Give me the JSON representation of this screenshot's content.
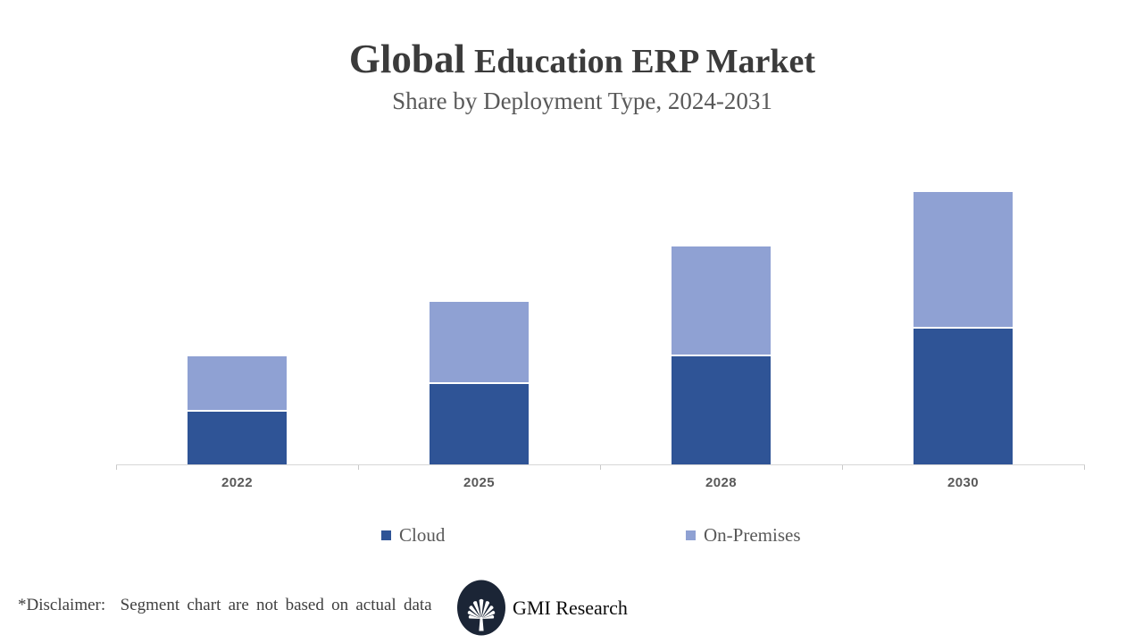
{
  "header": {
    "title_emphasis": "Global",
    "title_rest": "Education ERP Market",
    "subtitle": "Share by Deployment Type, 2024-2031"
  },
  "chart_data": {
    "type": "bar",
    "stacked": true,
    "title": "Global Education ERP Market",
    "subtitle": "Share by Deployment Type, 2024-2031",
    "categories": [
      "2022",
      "2025",
      "2028",
      "2030"
    ],
    "series": [
      {
        "name": "Cloud",
        "color": "#2F5496",
        "values": [
          1,
          1.5,
          2,
          2.5
        ]
      },
      {
        "name": "On-Premises",
        "color": "#8FA1D3",
        "values": [
          1,
          1.5,
          2,
          2.5
        ]
      }
    ],
    "xlabel": "",
    "ylabel": "",
    "ylim": [
      0,
      5.55
    ],
    "y_axis_visible": false,
    "gridlines": false,
    "legend_position": "bottom"
  },
  "footer": {
    "disclaimer": "*Disclaimer:  Segment chart are not based on actual data",
    "brand": "GMI Research"
  },
  "colors": {
    "cloud": "#2F5496",
    "on_premises": "#8FA1D3",
    "axis_line": "#D6D6D6",
    "title_text": "#3B3B3B",
    "secondary_text": "#595959",
    "logo_navy": "#1B2536"
  },
  "icons": {
    "brand_logo": "fan-palm-in-dark-ellipse"
  }
}
